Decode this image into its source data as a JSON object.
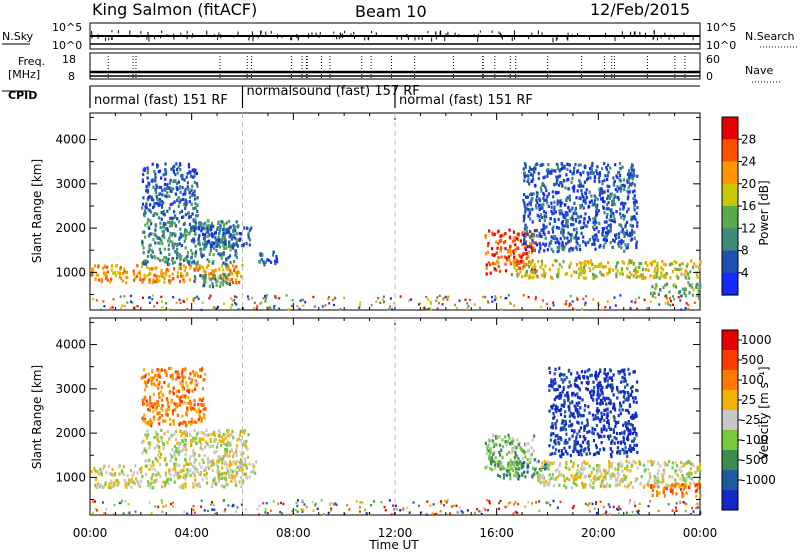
{
  "header": {
    "title": "King Salmon (fitACF)",
    "beam": "Beam 10",
    "date": "12/Feb/2015"
  },
  "summary": {
    "nsky_label": "N.Sky",
    "nsky_ticks": [
      "10^5",
      "10^0"
    ],
    "nsearch_label": "N.Search",
    "nsearch_ticks": [
      "10^5",
      "10^0"
    ],
    "freq_label": "Freq.",
    "freq_unit": "[MHz]",
    "freq_ticks": [
      "18",
      "8"
    ],
    "nave_label": "Nave",
    "nave_ticks": [
      "60",
      "0"
    ],
    "cpid_label": "CPID",
    "cpid_segments": [
      {
        "label": "normal (fast) 151 RF",
        "start_h": 0,
        "end_h": 6
      },
      {
        "label": "normalsound (fast) 157 RF",
        "start_h": 6,
        "end_h": 12
      },
      {
        "label": "normal (fast) 151 RF",
        "start_h": 12,
        "end_h": 24
      }
    ]
  },
  "chart_data": [
    {
      "type": "heatmap",
      "name": "power",
      "ylabel": "Slant Range [km]",
      "xlabel": "Time UT",
      "xlim": [
        0,
        24
      ],
      "ylim": [
        150,
        4600
      ],
      "x_ticks": [
        "00:00",
        "04:00",
        "08:00",
        "12:00",
        "16:00",
        "20:00",
        "00:00"
      ],
      "y_ticks": [
        1000,
        2000,
        3000,
        4000
      ],
      "colorbar": {
        "label": "Power [dB]",
        "ticks": [
          "4",
          "8",
          "12",
          "16",
          "20",
          "24",
          "28"
        ],
        "colors": [
          "#1428ff",
          "#1e50b4",
          "#3c8c78",
          "#5aaa50",
          "#c8c800",
          "#ff9600",
          "#ff5000",
          "#e60000"
        ]
      },
      "regions": [
        {
          "t": [
            0.0,
            6.0
          ],
          "range": [
            800,
            1200
          ],
          "level": 5
        },
        {
          "t": [
            2.0,
            5.8
          ],
          "range": [
            1200,
            2200
          ],
          "level": 2
        },
        {
          "t": [
            2.0,
            4.2
          ],
          "range": [
            2200,
            3500
          ],
          "level": 1
        },
        {
          "t": [
            4.0,
            6.3
          ],
          "range": [
            1600,
            2100
          ],
          "level": 1
        },
        {
          "t": [
            4.0,
            5.5
          ],
          "range": [
            700,
            1000
          ],
          "level": 2
        },
        {
          "t": [
            6.6,
            7.4
          ],
          "range": [
            1200,
            1500
          ],
          "level": 1
        },
        {
          "t": [
            15.5,
            17.5
          ],
          "range": [
            1000,
            2000
          ],
          "level": 6
        },
        {
          "t": [
            16.5,
            24.0
          ],
          "range": [
            900,
            1300
          ],
          "level": 4
        },
        {
          "t": [
            17.0,
            21.5
          ],
          "range": [
            1500,
            3500
          ],
          "level": 1
        },
        {
          "t": [
            22.0,
            24.0
          ],
          "range": [
            500,
            800
          ],
          "level": 3
        }
      ]
    },
    {
      "type": "heatmap",
      "name": "velocity",
      "ylabel": "Slant Range [km]",
      "xlabel": "Time UT",
      "xlim": [
        0,
        24
      ],
      "ylim": [
        150,
        4600
      ],
      "x_ticks": [
        "00:00",
        "04:00",
        "08:00",
        "12:00",
        "16:00",
        "20:00",
        "00:00"
      ],
      "y_ticks": [
        1000,
        2000,
        3000,
        4000
      ],
      "colorbar": {
        "label": "Velocity [m s⁻¹]",
        "ticks": [
          "1000",
          "500",
          "100",
          "25",
          "-25",
          "-100",
          "-500",
          "-1000"
        ],
        "colors": [
          "#1428c8",
          "#1e5aa0",
          "#3c8c50",
          "#78c83c",
          "#c8c8c8",
          "#f0b400",
          "#ff7800",
          "#ff3c00",
          "#e60000"
        ]
      },
      "regions": [
        {
          "t": [
            0.0,
            6.0
          ],
          "range": [
            800,
            1300
          ],
          "level": 4
        },
        {
          "t": [
            2.0,
            6.2
          ],
          "range": [
            1300,
            2100
          ],
          "level": 4
        },
        {
          "t": [
            2.0,
            4.5
          ],
          "range": [
            2200,
            3500
          ],
          "level": 6
        },
        {
          "t": [
            5.0,
            6.5
          ],
          "range": [
            1000,
            1400
          ],
          "level": 4
        },
        {
          "t": [
            15.5,
            17.5
          ],
          "range": [
            1200,
            2000
          ],
          "level": 3
        },
        {
          "t": [
            16.0,
            18.0
          ],
          "range": [
            1000,
            1400
          ],
          "level": 2
        },
        {
          "t": [
            17.5,
            24.0
          ],
          "range": [
            800,
            1400
          ],
          "level": 4
        },
        {
          "t": [
            18.0,
            21.5
          ],
          "range": [
            1500,
            3500
          ],
          "level": 0
        },
        {
          "t": [
            22.0,
            24.0
          ],
          "range": [
            600,
            900
          ],
          "level": 6
        }
      ]
    }
  ]
}
